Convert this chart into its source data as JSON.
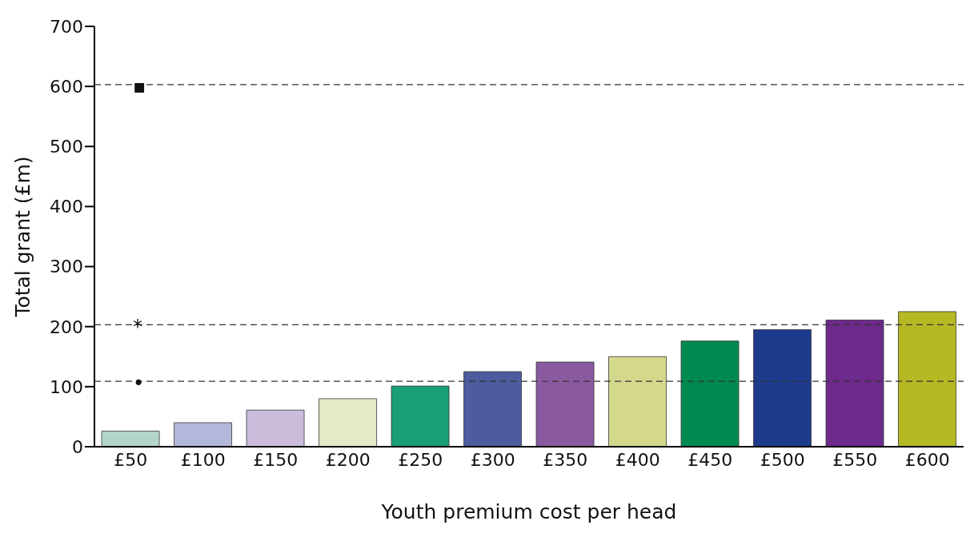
{
  "chart_data": {
    "type": "bar",
    "xlabel": "Youth premium cost per head",
    "ylabel": "Total grant (£m)",
    "categories": [
      "£50",
      "£100",
      "£150",
      "£200",
      "£250",
      "£300",
      "£350",
      "£400",
      "£450",
      "£500",
      "£550",
      "£600"
    ],
    "values": [
      26,
      40,
      61,
      80,
      101,
      125,
      141,
      150,
      176,
      195,
      211,
      225
    ],
    "colors": [
      "#b3d6c8",
      "#b3b8da",
      "#cbbcdc",
      "#e6e9c6",
      "#1a9e77",
      "#4c5c9e",
      "#8a5aa0",
      "#d4d88c",
      "#008a52",
      "#1c3b8c",
      "#6d2a8a",
      "#b5b923"
    ],
    "ylim": [
      0,
      700
    ],
    "yticks": [
      0,
      100,
      200,
      300,
      400,
      500,
      600,
      700
    ],
    "grid": false,
    "legend": false,
    "ref_lines": [
      {
        "axis": "y",
        "value": 109,
        "label": "•",
        "color": "#333333",
        "line_style": "dashed"
      },
      {
        "axis": "y",
        "value": 203,
        "label": "*",
        "color": "#333333",
        "line_style": "dashed"
      },
      {
        "axis": "y",
        "value": 603,
        "label": "▪",
        "color": "#333333",
        "line_style": "dashed"
      }
    ]
  }
}
